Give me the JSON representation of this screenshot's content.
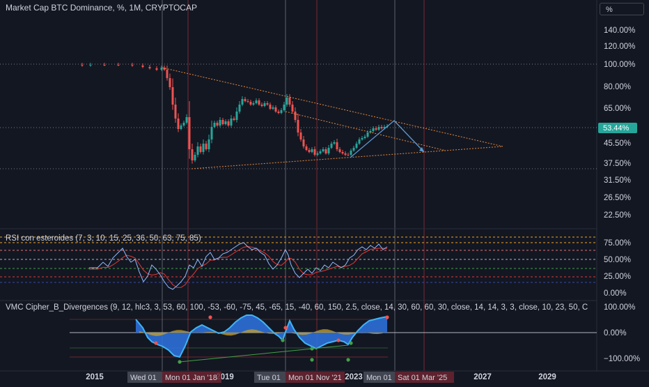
{
  "header": {
    "title": "Market Cap BTC Dominance, %, 1M, CRYPTOCAP",
    "unit_button": "%"
  },
  "price_axis": {
    "ticks": [
      "140.00%",
      "120.00%",
      "100.00%",
      "80.00%",
      "65.00%",
      "45.50%",
      "37.50%",
      "31.50%",
      "26.50%",
      "22.50%"
    ],
    "last_value": "53.44%",
    "last_value_color": "#26a69a"
  },
  "rsi": {
    "title": "RSI con esteroides (7, 3, 10, 15, 25, 36, 50, 63, 75, 85)",
    "ticks": [
      "75.00%",
      "50.00%",
      "25.00%",
      "0.00%"
    ]
  },
  "vmc": {
    "title": "VMC Cipher_B_Divergences (9, 12, hlc3, 3, 53, 60, 100, -53, -60, -75, 45, -65, 15, -40, 60, 150, 2.5, close, 14, 30, 60, 60, 30, close, 14, 14, 3, 3, close, 10, 23, 50, C",
    "ticks": [
      "100.00%",
      "0.00%",
      "−100.00%"
    ]
  },
  "time_axis": {
    "years": [
      "2015",
      "2019",
      "2023",
      "2027",
      "2029"
    ],
    "crosshair_labels": [
      {
        "text": "Wed 01"
      },
      {
        "text": "Mon 01 Jan '18"
      },
      {
        "text": "Tue 01"
      },
      {
        "text": "Mon 01 Nov '21"
      },
      {
        "text": "Mon 01"
      },
      {
        "text": "Sat 01 Mar '25"
      }
    ]
  },
  "colors": {
    "background": "#131722",
    "up": "#26a69a",
    "down": "#ef5350",
    "trendline": "#e8893b",
    "projection": "#5b9bd5",
    "rsi_line": "#8fbcff",
    "rsi_signal": "#e53935",
    "wave_fill": "#2e6fd8",
    "wave_line": "#3fb5f5"
  },
  "chart_data": {
    "type": "candlestick",
    "title": "Market Cap BTC Dominance, %, 1M, CRYPTOCAP",
    "y_scale": "log",
    "x_range": [
      "2013-06",
      "2030-06"
    ],
    "y_range_percent": [
      20,
      170
    ],
    "key_points": [
      {
        "date": "2013-06",
        "value": 95
      },
      {
        "date": "2017-03",
        "value": 93
      },
      {
        "date": "2017-06",
        "value": 60
      },
      {
        "date": "2018-01",
        "value": 35
      },
      {
        "date": "2019-06",
        "value": 65
      },
      {
        "date": "2021-01",
        "value": 70
      },
      {
        "date": "2021-06",
        "value": 45
      },
      {
        "date": "2022-10",
        "value": 40
      },
      {
        "date": "2023-06",
        "value": 48
      },
      {
        "date": "2024-06",
        "value": 53.44
      }
    ],
    "last_value": 53.44,
    "trendlines": [
      {
        "from": {
          "date": "2017-03",
          "value": 97
        },
        "to": {
          "date": "2027-03",
          "value": 44
        }
      },
      {
        "from": {
          "date": "2018-01",
          "value": 35
        },
        "to": {
          "date": "2027-03",
          "value": 44
        }
      }
    ],
    "projection": [
      {
        "date": "2023-01",
        "value": 40
      },
      {
        "date": "2024-09",
        "value": 57
      },
      {
        "date": "2025-09",
        "value": 43
      }
    ]
  }
}
